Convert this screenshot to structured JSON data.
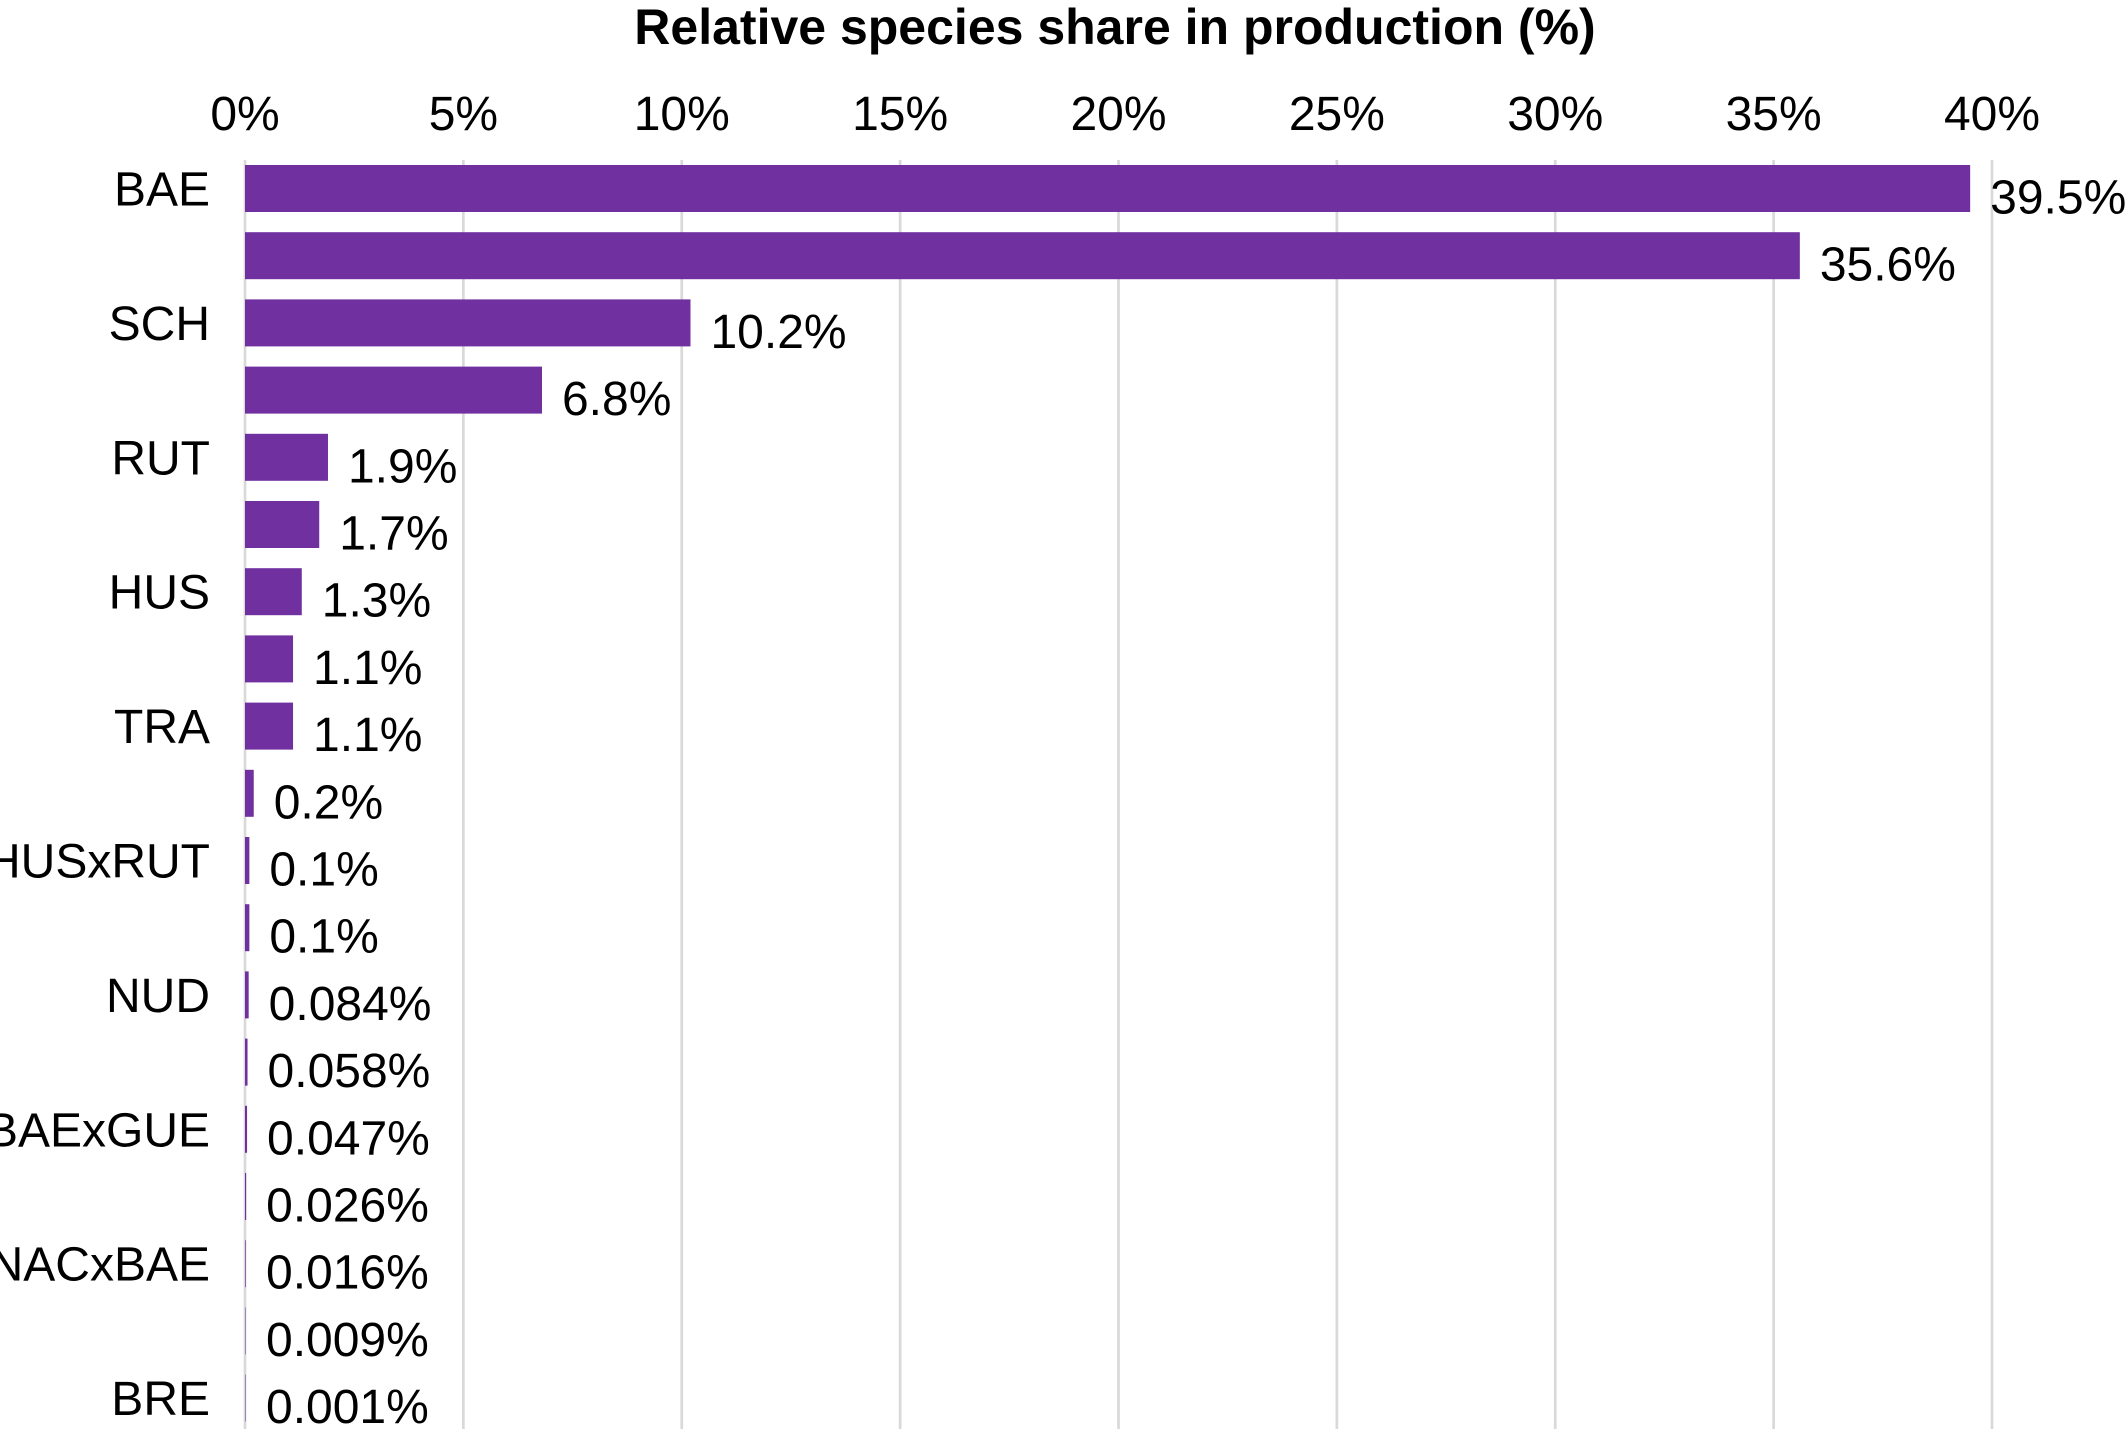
{
  "chart_data": {
    "type": "bar",
    "orientation": "horizontal",
    "title": "Relative species share in production (%)",
    "xlabel": "",
    "ylabel": "",
    "xlim": [
      0,
      40
    ],
    "x_axis_position": "top",
    "grid": true,
    "legend": "none",
    "bar_color": "#7030a0",
    "x_ticks": [
      "0%",
      "5%",
      "10%",
      "15%",
      "20%",
      "25%",
      "30%",
      "35%",
      "40%"
    ],
    "categories": [
      "BAE",
      "",
      "SCH",
      "",
      "RUT",
      "",
      "HUS",
      "",
      "TRA",
      "",
      "HUSxRUT",
      "",
      "NUD",
      "",
      "BAExGUE",
      "",
      "NACxBAE",
      "",
      "BRE"
    ],
    "values": [
      39.5,
      35.6,
      10.2,
      6.8,
      1.9,
      1.7,
      1.3,
      1.1,
      1.1,
      0.2,
      0.1,
      0.1,
      0.084,
      0.058,
      0.047,
      0.026,
      0.016,
      0.009,
      0.001
    ],
    "value_labels": [
      "39.5%",
      "35.6%",
      "10.2%",
      "6.8%",
      "1.9%",
      "1.7%",
      "1.3%",
      "1.1%",
      "1.1%",
      "0.2%",
      "0.1%",
      "0.1%",
      "0.084%",
      "0.058%",
      "0.047%",
      "0.026%",
      "0.016%",
      "0.009%",
      "0.001%"
    ]
  }
}
